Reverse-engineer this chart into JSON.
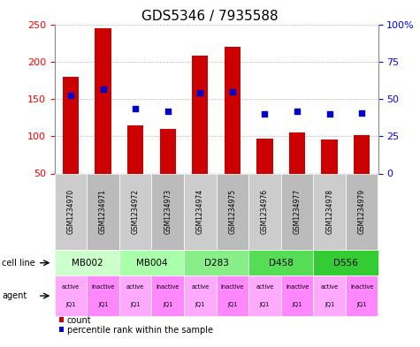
{
  "title": "GDS5346 / 7935588",
  "samples": [
    "GSM1234970",
    "GSM1234971",
    "GSM1234972",
    "GSM1234973",
    "GSM1234974",
    "GSM1234975",
    "GSM1234976",
    "GSM1234977",
    "GSM1234978",
    "GSM1234979"
  ],
  "counts": [
    180,
    245,
    115,
    110,
    208,
    220,
    97,
    105,
    95,
    101
  ],
  "percentiles": [
    155,
    163,
    137,
    134,
    158,
    160,
    130,
    133,
    130,
    131
  ],
  "cell_lines": [
    {
      "label": "MB002",
      "start": 0,
      "end": 2,
      "color": "#ccffcc"
    },
    {
      "label": "MB004",
      "start": 2,
      "end": 4,
      "color": "#aaffaa"
    },
    {
      "label": "D283",
      "start": 4,
      "end": 6,
      "color": "#88ee88"
    },
    {
      "label": "D458",
      "start": 6,
      "end": 8,
      "color": "#55dd55"
    },
    {
      "label": "D556",
      "start": 8,
      "end": 10,
      "color": "#33cc33"
    }
  ],
  "agents": [
    "active\nJQ1",
    "inactive\nJQ1",
    "active\nJQ1",
    "inactive\nJQ1",
    "active\nJQ1",
    "inactive\nJQ1",
    "active\nJQ1",
    "inactive\nJQ1",
    "active\nJQ1",
    "inactive\nJQ1"
  ],
  "agent_colors": [
    "#ffaaff",
    "#ff88ff",
    "#ffaaff",
    "#ff88ff",
    "#ffaaff",
    "#ff88ff",
    "#ffaaff",
    "#ff88ff",
    "#ffaaff",
    "#ff88ff"
  ],
  "bar_color": "#cc0000",
  "dot_color": "#0000cc",
  "ylim_left": [
    50,
    250
  ],
  "ylim_right": [
    0,
    100
  ],
  "yticks_left": [
    50,
    100,
    150,
    200,
    250
  ],
  "yticks_right": [
    0,
    25,
    50,
    75,
    100
  ],
  "bar_width": 0.5,
  "grid_color": "#aaaaaa"
}
